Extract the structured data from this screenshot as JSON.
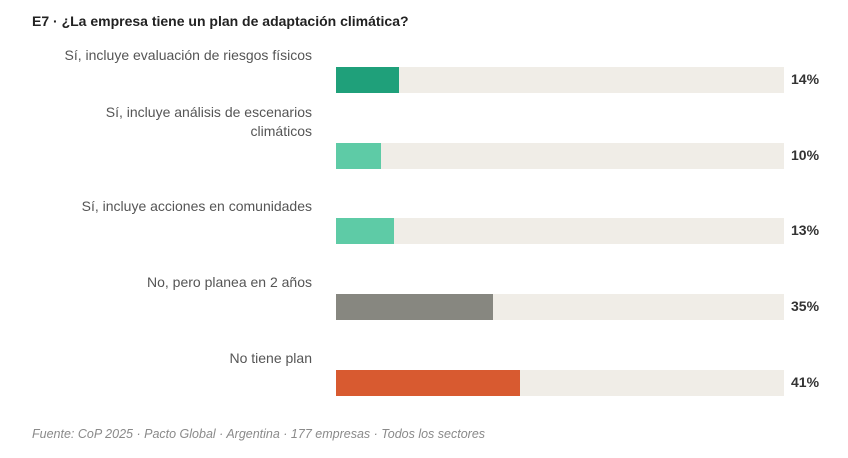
{
  "chart_data": {
    "type": "bar",
    "orientation": "horizontal",
    "title": "E7 · ¿La empresa tiene un plan de adaptación climática?",
    "categories": [
      "Sí, incluye evaluación de riesgos físicos",
      "Sí, incluye análisis de escenarios climáticos",
      "Sí, incluye acciones en comunidades",
      "No, pero planea en 2 años",
      "No tiene plan"
    ],
    "label_lines": [
      [
        "Sí, incluye evaluación de riesgos físicos"
      ],
      [
        "Sí, incluye análisis de escenarios",
        "climáticos"
      ],
      [
        "Sí, incluye acciones en comunidades"
      ],
      [
        "No, pero planea en 2 años"
      ],
      [
        "No tiene plan"
      ]
    ],
    "values": [
      14,
      10,
      13,
      35,
      41
    ],
    "value_labels": [
      "14%",
      "10%",
      "13%",
      "35%",
      "41%"
    ],
    "colors": [
      "#1fa07a",
      "#5ecba6",
      "#5ecba6",
      "#878780",
      "#d85a30"
    ],
    "track_color": "#f0ede7",
    "xlim": [
      0,
      100
    ],
    "unit": "%",
    "grid": false,
    "legend": "none",
    "source": "Fuente: CoP 2025 · Pacto Global · Argentina · 177 empresas · Todos los sectores"
  }
}
